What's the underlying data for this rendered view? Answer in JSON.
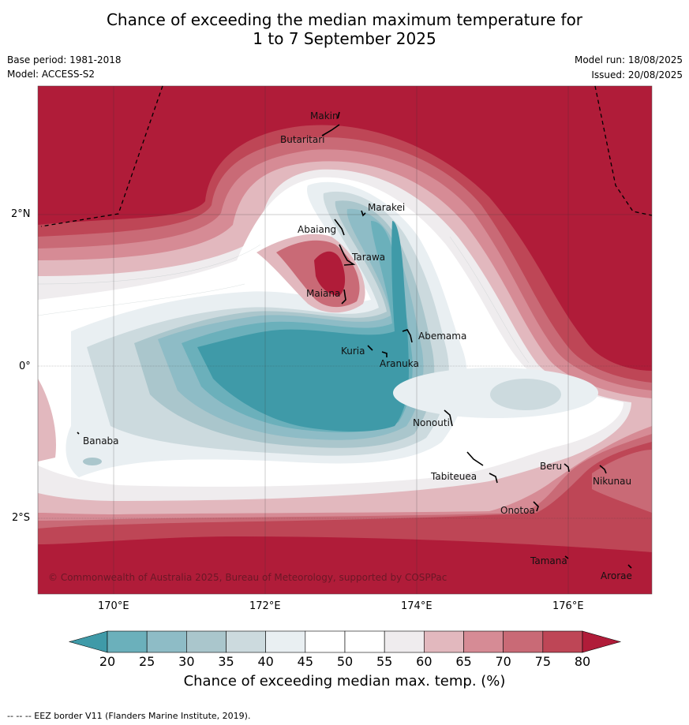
{
  "title_line1": "Chance of exceeding the median maximum temperature for",
  "title_line2": "1 to 7 September 2025",
  "base_period": "Base period: 1981-2018",
  "model": "Model: ACCESS-S2",
  "model_run": "Model run: 18/08/2025",
  "issued": "Issued: 20/08/2025",
  "copyright": "© Commonwealth of Australia 2025, Bureau of Meteorology, supported by COSPPac",
  "x_ticks": [
    "170°E",
    "172°E",
    "174°E",
    "176°E"
  ],
  "y_ticks": [
    "2°N",
    "0°",
    "2°S"
  ],
  "places": [
    "Makin",
    "Butaritari",
    "Marakei",
    "Abaiang",
    "Tarawa",
    "Maiana",
    "Abemama",
    "Kuria",
    "Aranuka",
    "Nonouti",
    "Banaba",
    "Tabiteuea",
    "Beru",
    "Nikunau",
    "Onotoa",
    "Tamana",
    "Arorae"
  ],
  "colorbar": {
    "ticks": [
      "20",
      "25",
      "30",
      "35",
      "40",
      "45",
      "50",
      "55",
      "60",
      "65",
      "70",
      "75",
      "80"
    ],
    "colors": [
      "#3f9aa8",
      "#6bb0bb",
      "#8ebcc6",
      "#aac6cc",
      "#ccdade",
      "#e9eff2",
      "#ffffff",
      "#ffffff",
      "#efecee",
      "#e2b8be",
      "#d68b95",
      "#c96a76",
      "#be4656",
      "#b01c39"
    ],
    "label": "Chance of exceeding median max. temp. (%)"
  },
  "footer": "--  --  -- EEZ border V11 (Flanders Marine Institute, 2019)."
}
